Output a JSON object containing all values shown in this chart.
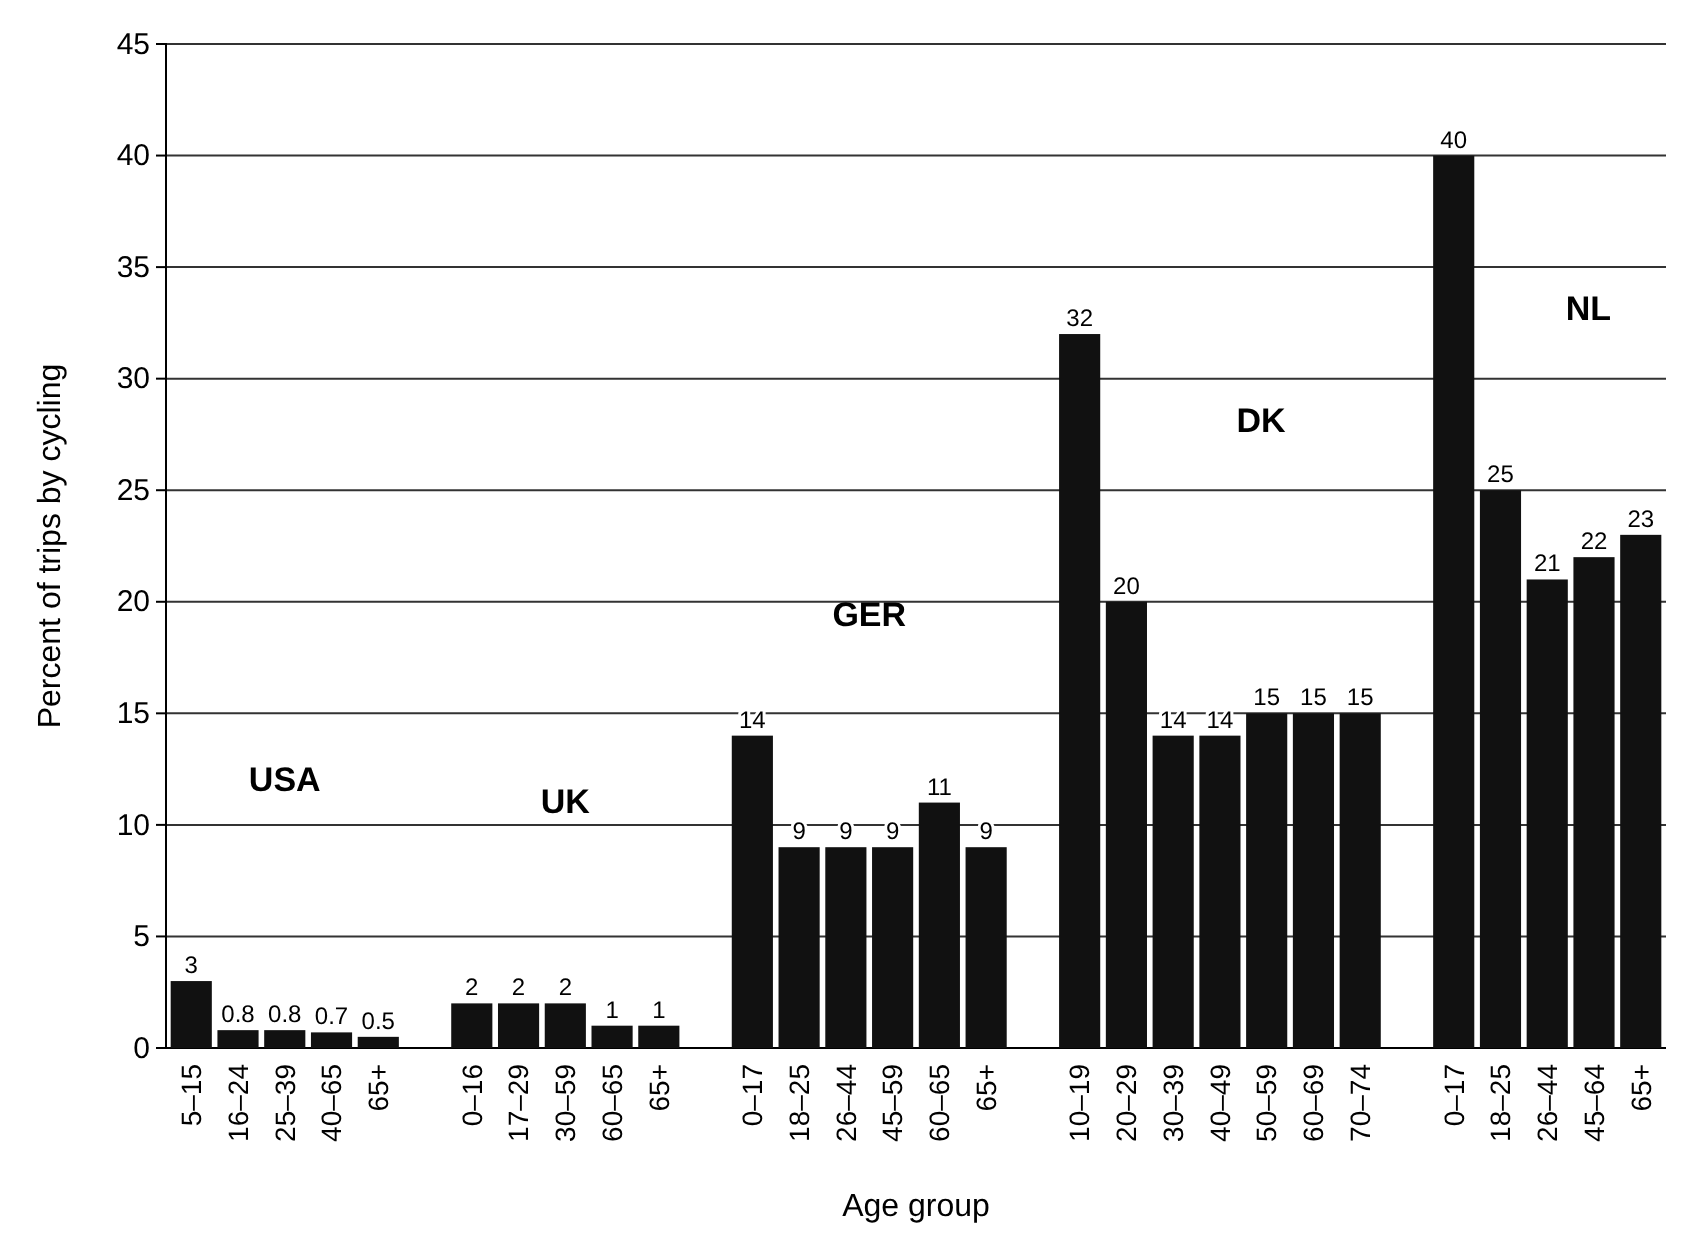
{
  "chart_data": {
    "type": "bar",
    "xlabel": "Age group",
    "ylabel": "Percent of trips by cycling",
    "categories": [
      "5–15",
      "16–24",
      "25–39",
      "40–65",
      "65+",
      null,
      "0–16",
      "17–29",
      "30–59",
      "60–65",
      "65+",
      null,
      "0–17",
      "18–25",
      "26–44",
      "45–59",
      "60–65",
      "65+",
      null,
      "10–19",
      "20–29",
      "30–39",
      "40–49",
      "50–59",
      "60–69",
      "70–74",
      null,
      "0–17",
      "18–25",
      "26–44",
      "45–64",
      "65+"
    ],
    "values": [
      3,
      0.8,
      0.8,
      0.7,
      0.5,
      null,
      2,
      2,
      2,
      1,
      1,
      null,
      14,
      9,
      9,
      9,
      11,
      9,
      null,
      32,
      20,
      14,
      14,
      15,
      15,
      15,
      null,
      40,
      25,
      21,
      22,
      23
    ],
    "color": "#111111",
    "ylim": [
      0,
      45
    ],
    "yticks": [
      0,
      5,
      10,
      15,
      20,
      25,
      30,
      35,
      40,
      45
    ],
    "grid": "y",
    "data_labels": true,
    "annotations": [
      "USA",
      "UK",
      "GER",
      "DK",
      "NL"
    ]
  }
}
